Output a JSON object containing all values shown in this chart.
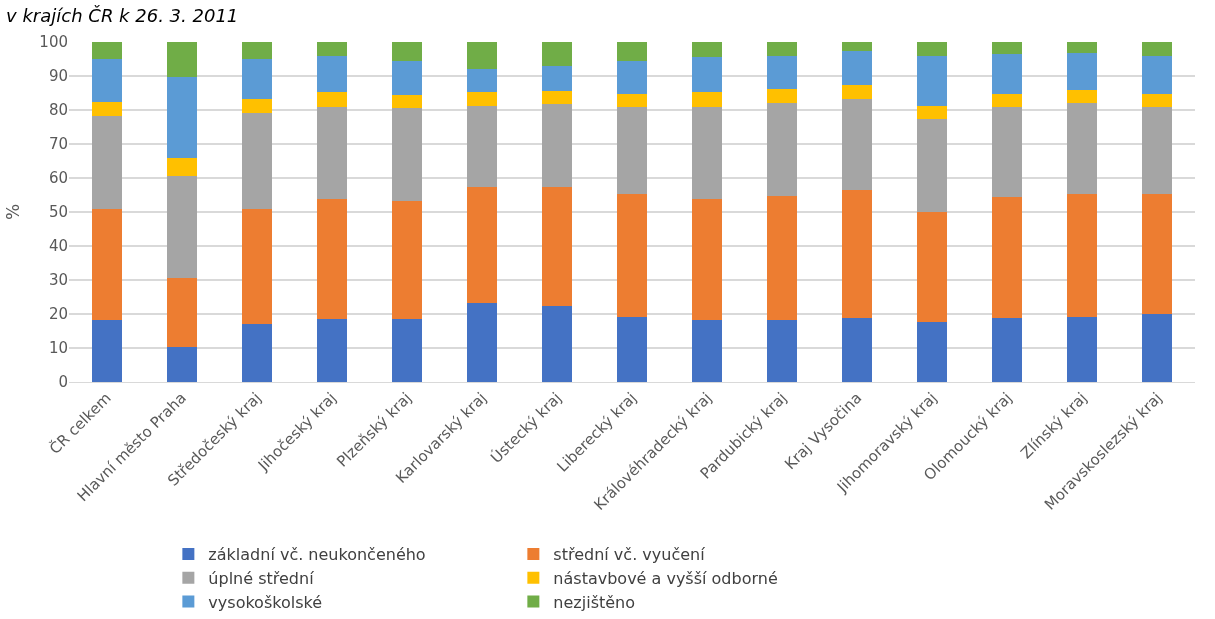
{
  "chart_data": {
    "type": "bar",
    "stacked": true,
    "title": "v krajích ČR k 26. 3. 2011",
    "ylabel": "%",
    "categories": [
      "ČR celkem",
      "Hlavní město Praha",
      "Středočeský kraj",
      "Jihočeský kraj",
      "Plzeňský kraj",
      "Karlovarský kraj",
      "Ústecký kraj",
      "Liberecký kraj",
      "Královéhradecký kraj",
      "Pardubický kraj",
      "Kraj Vysočina",
      "Jihomoravský kraj",
      "Olomoucký kraj",
      "Zlínský kraj",
      "Moravskoslezský kraj"
    ],
    "series": [
      {
        "name": "základní vč. neukončeného",
        "color": "#4472c4",
        "values": [
          18.1,
          10.3,
          17.1,
          18.5,
          18.5,
          23.3,
          22.3,
          19.1,
          18.3,
          18.3,
          18.7,
          17.7,
          18.7,
          19.1,
          20.1
        ]
      },
      {
        "name": "střední vč. vyučení",
        "color": "#ed7d31",
        "values": [
          32.8,
          20.2,
          33.8,
          35.3,
          34.7,
          34.2,
          35.2,
          36.1,
          35.5,
          36.4,
          37.8,
          32.4,
          35.7,
          36.1,
          35.1
        ]
      },
      {
        "name": "úplné střední",
        "color": "#a5a5a5",
        "values": [
          27.3,
          30.1,
          28.3,
          27.2,
          27.4,
          23.8,
          24.4,
          25.8,
          27.2,
          27.3,
          26.8,
          27.4,
          26.6,
          26.8,
          25.8
        ]
      },
      {
        "name": "nástavbové a vyšší odborné",
        "color": "#ffc000",
        "values": [
          4.3,
          5.2,
          4.1,
          4.2,
          3.7,
          3.9,
          3.8,
          3.8,
          4.3,
          4.3,
          4.2,
          3.7,
          3.8,
          3.8,
          3.8
        ]
      },
      {
        "name": "vysokoškolské",
        "color": "#5b9bd5",
        "values": [
          12.4,
          23.9,
          11.6,
          10.7,
          10.1,
          7.0,
          7.3,
          9.7,
          10.2,
          9.6,
          9.8,
          14.7,
          11.7,
          11.1,
          11.1
        ]
      },
      {
        "name": "nezjištěno",
        "color": "#70ad47",
        "values": [
          5.1,
          10.3,
          5.1,
          4.1,
          5.6,
          7.8,
          7.0,
          5.5,
          4.5,
          4.1,
          2.7,
          4.1,
          3.5,
          3.1,
          4.1
        ]
      }
    ],
    "ylim": [
      0,
      100
    ],
    "yticks": [
      0,
      10,
      20,
      30,
      40,
      50,
      60,
      70,
      80,
      90,
      100
    ],
    "grid": "y",
    "legend": "bottom"
  }
}
